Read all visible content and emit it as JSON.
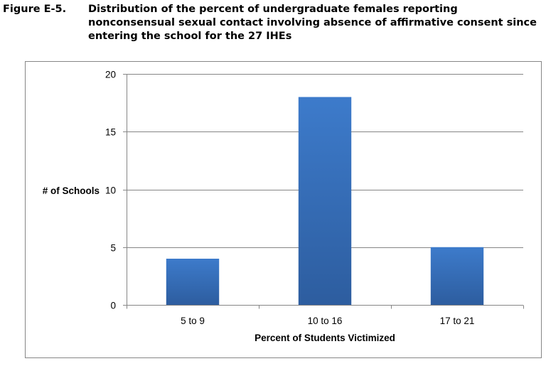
{
  "figure": {
    "label": "Figure E-5.",
    "title": "Distribution of the percent of undergraduate females reporting nonconsensual sexual contact involving absence of affirmative consent since entering the school for the 27 IHEs"
  },
  "chart_data": {
    "type": "bar",
    "categories": [
      "5 to 9",
      "10 to 16",
      "17 to 21"
    ],
    "values": [
      4,
      18,
      5
    ],
    "xlabel": "Percent of Students Victimized",
    "ylabel": "# of Schools",
    "ylim": [
      0,
      20
    ],
    "yticks": [
      0,
      5,
      10,
      15,
      20
    ],
    "grid": true,
    "legend": "none",
    "colors": {
      "bar_top": "#3d7bcb",
      "bar_bottom": "#2d5d9f",
      "grid": "#868686"
    }
  }
}
